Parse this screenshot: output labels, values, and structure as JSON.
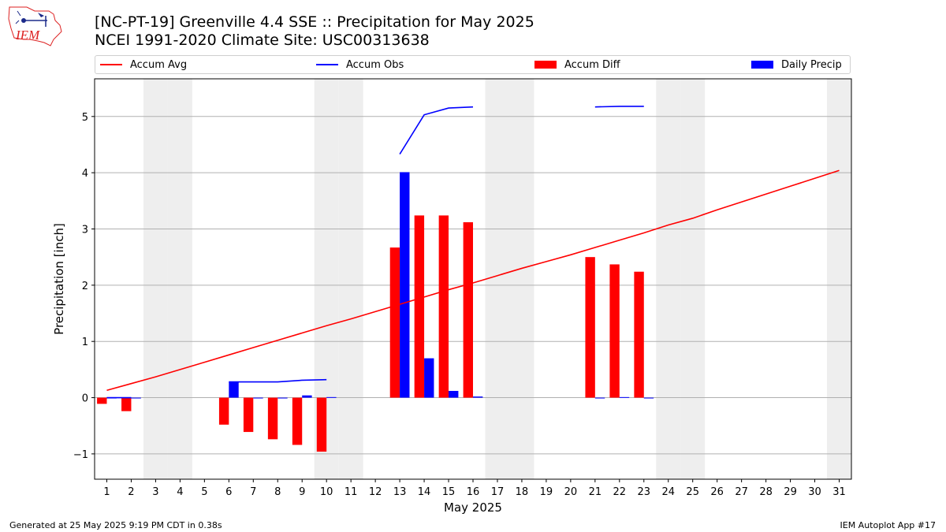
{
  "header": {
    "title_line1": "[NC-PT-19] Greenville 4.4 SSE :: Precipitation for May 2025",
    "title_line2": "NCEI 1991-2020 Climate Site: USC00313638",
    "logo_text": "IEM"
  },
  "footer": {
    "generated": "Generated at 25 May 2025 9:19 PM CDT in 0.38s",
    "app": "IEM Autoplot App #17"
  },
  "colors": {
    "accum_avg": "#ff0000",
    "accum_obs": "#0000ff",
    "accum_diff": "#ff0000",
    "daily_precip": "#0000ff",
    "weekend_shade": "#eeeeee",
    "grid": "#b0b0b0"
  },
  "chart_data": {
    "type": "bar",
    "xlabel": "May 2025",
    "ylabel": "Precipitation [inch]",
    "xlim": [
      0.5,
      31.5
    ],
    "ylim": [
      -1.45,
      5.67
    ],
    "yticks": [
      -1,
      0,
      1,
      2,
      3,
      4,
      5
    ],
    "xticks": [
      1,
      2,
      3,
      4,
      5,
      6,
      7,
      8,
      9,
      10,
      11,
      12,
      13,
      14,
      15,
      16,
      17,
      18,
      19,
      20,
      21,
      22,
      23,
      24,
      25,
      26,
      27,
      28,
      29,
      30,
      31
    ],
    "grid": "horizontal",
    "legend_placement": "top, above plot",
    "weekend_days": [
      3,
      4,
      10,
      11,
      17,
      18,
      24,
      25,
      31
    ],
    "legend": [
      {
        "key": "accum_avg",
        "label": "Accum Avg",
        "kind": "line"
      },
      {
        "key": "accum_obs",
        "label": "Accum Obs",
        "kind": "line"
      },
      {
        "key": "accum_diff",
        "label": "Accum Diff",
        "kind": "bar"
      },
      {
        "key": "daily_precip",
        "label": "Daily Precip",
        "kind": "bar"
      }
    ],
    "accum_avg": {
      "days": [
        1,
        2,
        3,
        4,
        5,
        6,
        7,
        8,
        9,
        10,
        11,
        12,
        13,
        14,
        15,
        16,
        17,
        18,
        19,
        20,
        21,
        22,
        23,
        24,
        25,
        26,
        27,
        28,
        29,
        30,
        31
      ],
      "values": [
        0.13,
        0.25,
        0.37,
        0.5,
        0.63,
        0.76,
        0.89,
        1.02,
        1.15,
        1.28,
        1.4,
        1.53,
        1.66,
        1.79,
        1.92,
        2.04,
        2.17,
        2.3,
        2.42,
        2.54,
        2.67,
        2.8,
        2.93,
        3.07,
        3.19,
        3.34,
        3.48,
        3.62,
        3.76,
        3.9,
        4.04
      ]
    },
    "accum_obs": [
      {
        "days": [
          1,
          2
        ],
        "values": [
          0.0,
          0.0
        ]
      },
      {
        "days": [
          6,
          7,
          8,
          9,
          10
        ],
        "values": [
          0.28,
          0.28,
          0.28,
          0.31,
          0.32
        ]
      },
      {
        "days": [
          13,
          14,
          15,
          16
        ],
        "values": [
          4.33,
          5.03,
          5.15,
          5.17
        ]
      },
      {
        "days": [
          21,
          22,
          23
        ],
        "values": [
          5.17,
          5.18,
          5.18
        ]
      }
    ],
    "accum_diff": {
      "days": [
        1,
        2,
        6,
        7,
        8,
        9,
        10,
        13,
        14,
        15,
        16,
        21,
        22,
        23
      ],
      "values": [
        -0.11,
        -0.24,
        -0.48,
        -0.61,
        -0.74,
        -0.84,
        -0.96,
        2.67,
        3.24,
        3.24,
        3.12,
        2.5,
        2.37,
        2.24
      ]
    },
    "daily_precip": {
      "days": [
        1,
        2,
        6,
        7,
        8,
        9,
        10,
        13,
        14,
        15,
        16,
        21,
        22,
        23
      ],
      "values": [
        0.0,
        0.0,
        0.28,
        0.0,
        0.0,
        0.04,
        0.01,
        4.01,
        0.7,
        0.12,
        0.02,
        0.0,
        0.01,
        0.0
      ]
    }
  }
}
